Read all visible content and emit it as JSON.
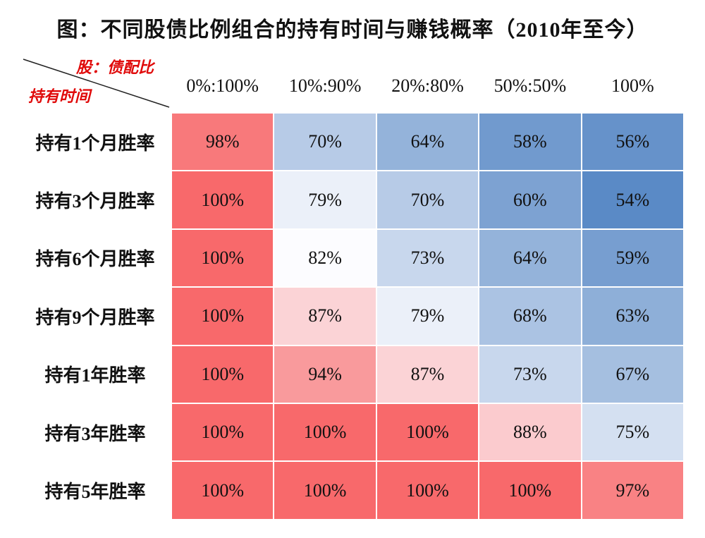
{
  "chart_data": {
    "type": "heatmap",
    "title": "图：不同股债比例组合的持有时间与赚钱概率（2010年至今）",
    "corner": {
      "column_axis_label": "股：债配比",
      "row_axis_label": "持有时间"
    },
    "columns": [
      "0%:100%",
      "10%:90%",
      "20%:80%",
      "50%:50%",
      "100%"
    ],
    "rows": [
      "持有1个月胜率",
      "持有3个月胜率",
      "持有6个月胜率",
      "持有9个月胜率",
      "持有1年胜率",
      "持有3年胜率",
      "持有5年胜率"
    ],
    "unit": "%",
    "values": [
      [
        98,
        70,
        64,
        58,
        56
      ],
      [
        100,
        79,
        70,
        60,
        54
      ],
      [
        100,
        82,
        73,
        64,
        59
      ],
      [
        100,
        87,
        79,
        68,
        63
      ],
      [
        100,
        94,
        87,
        73,
        67
      ],
      [
        100,
        100,
        100,
        88,
        75
      ],
      [
        100,
        100,
        100,
        100,
        97
      ]
    ],
    "color_scale": {
      "low": "#5a8ac6",
      "mid": "#fcfcff",
      "high": "#f8696b"
    },
    "corner_label_color": "#e00a0a"
  }
}
